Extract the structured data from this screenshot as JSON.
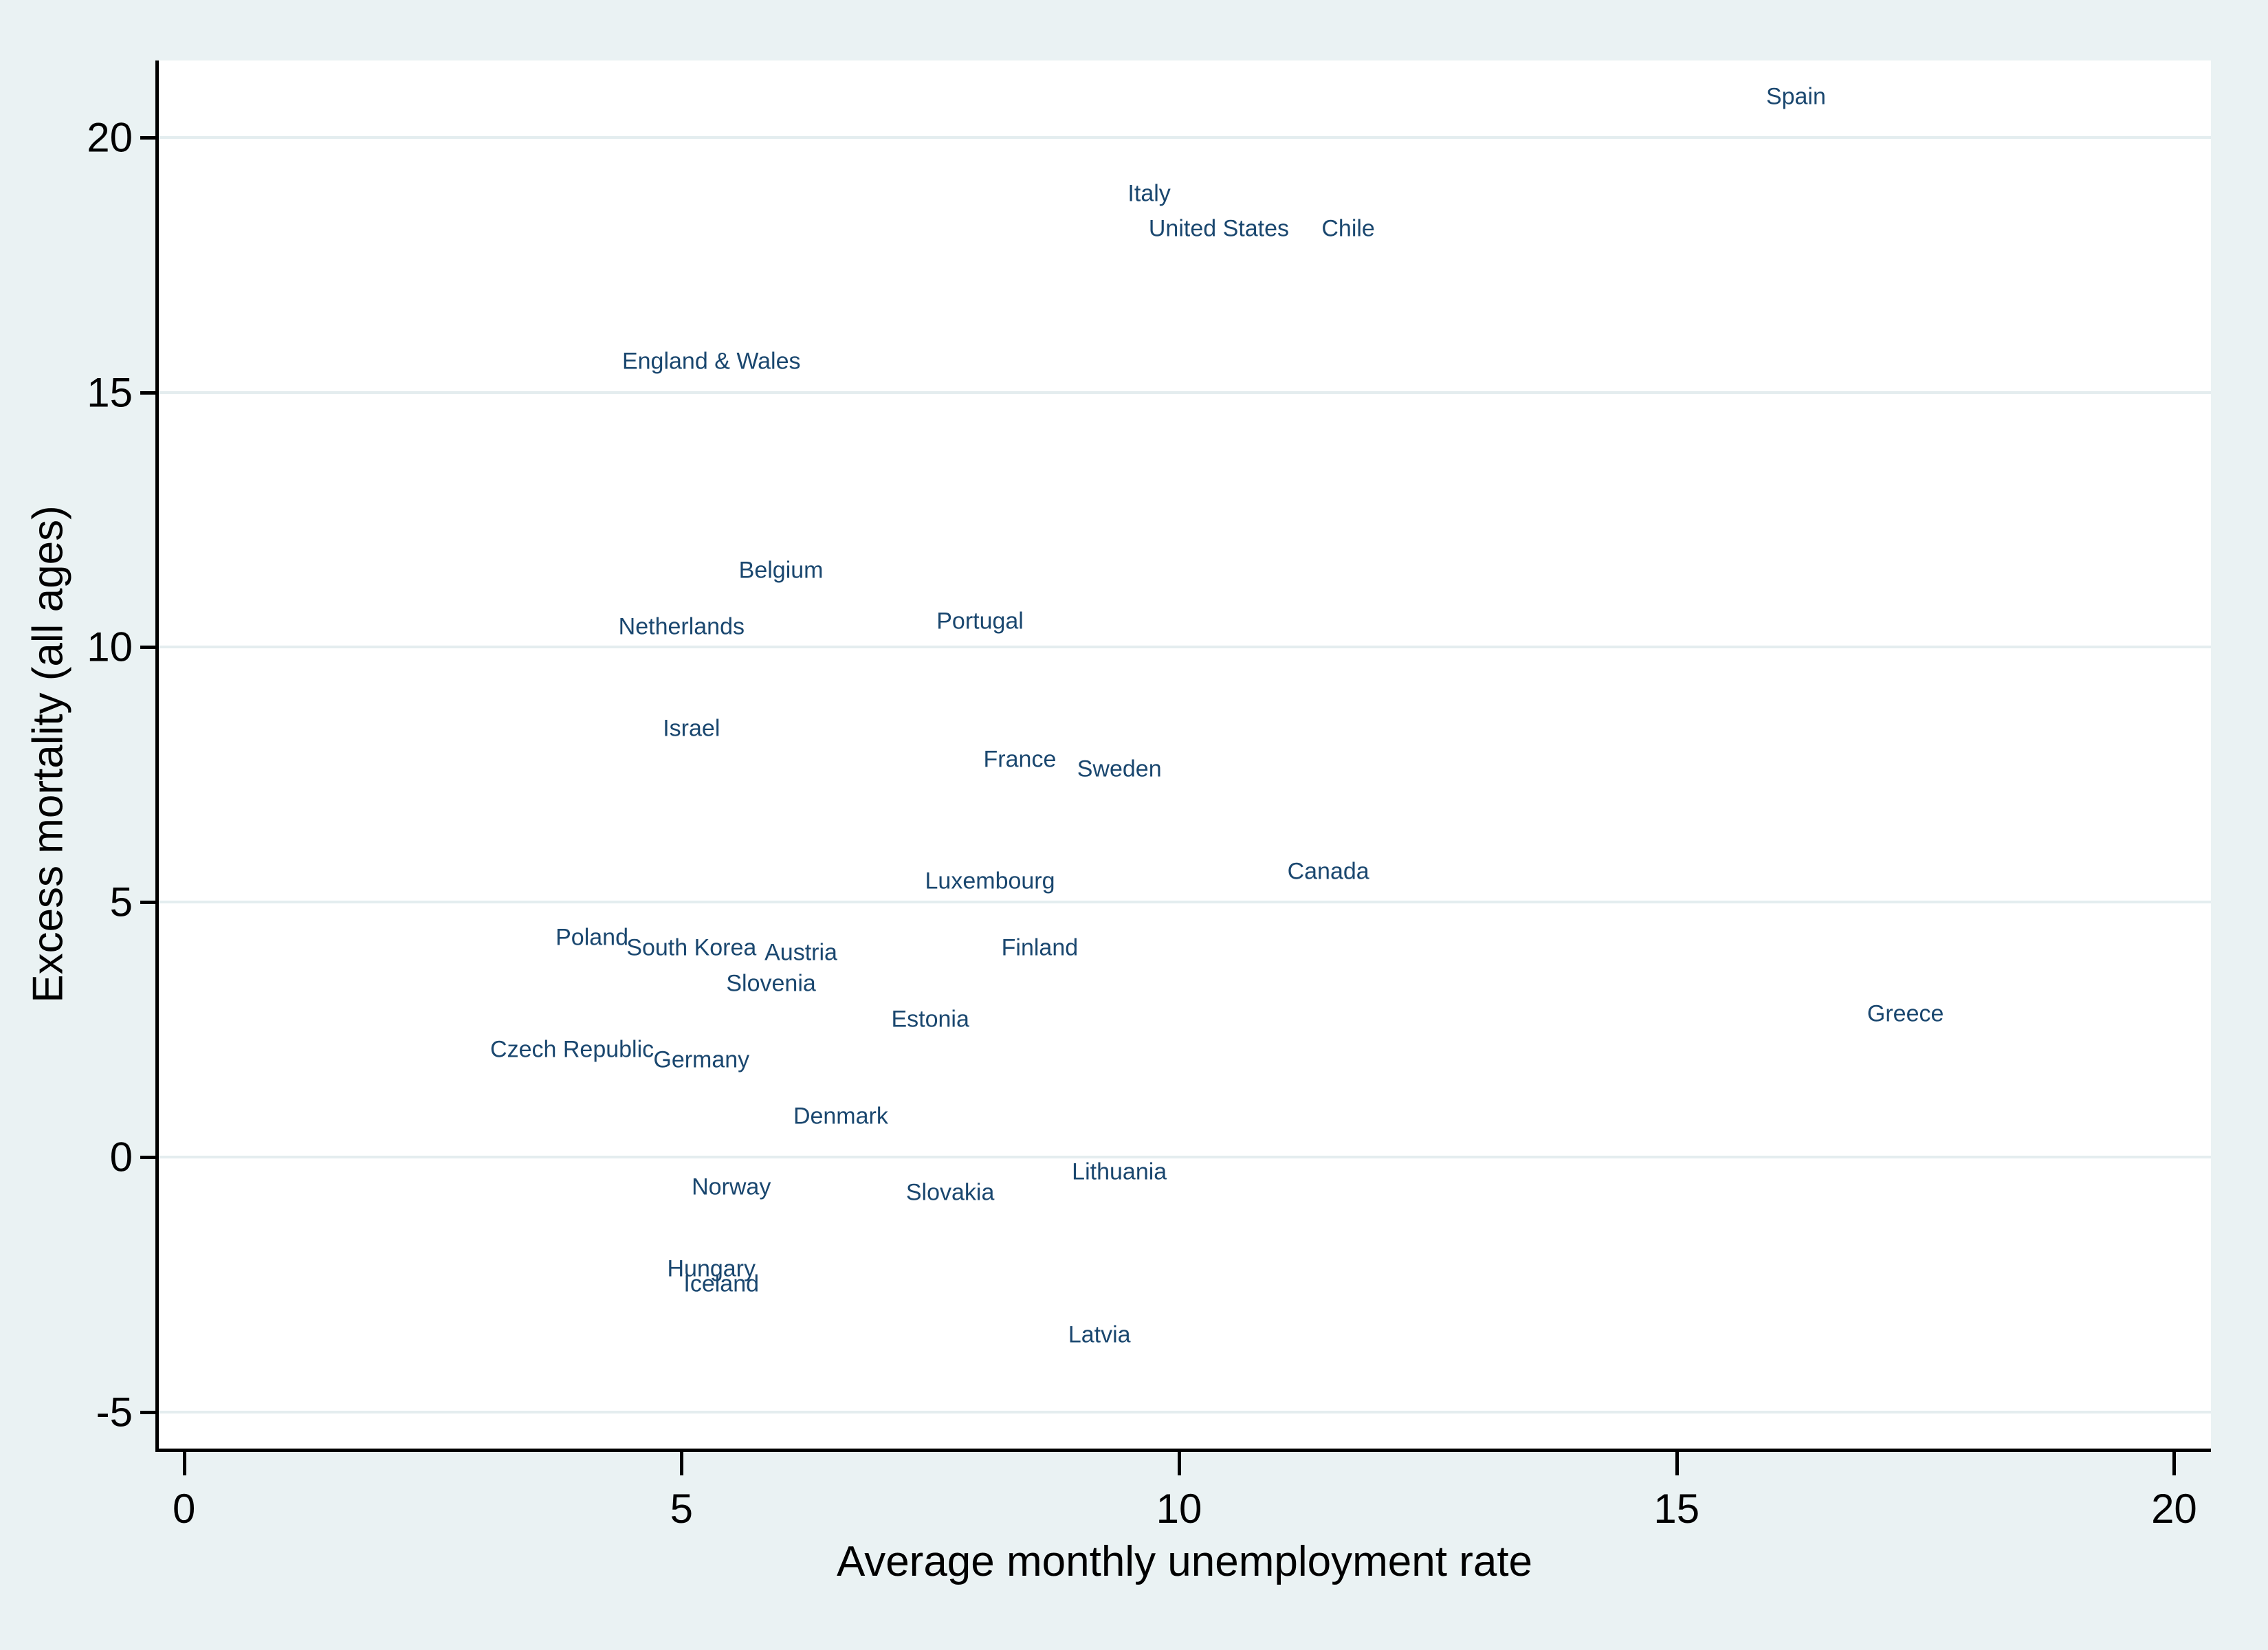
{
  "colors": {
    "page_background": "#eaf2f3",
    "plot_background": "#ffffff",
    "gridline": "#e4edef",
    "axis": "#000000",
    "point_label": "#1a476f"
  },
  "chart_data": {
    "type": "scatter",
    "title": "",
    "xlabel": "Average monthly unemployment rate",
    "ylabel": "Excess mortality (all ages)",
    "x_ticks": [
      0,
      5,
      10,
      15,
      20
    ],
    "y_ticks": [
      -5,
      0,
      5,
      10,
      15,
      20
    ],
    "x_domain": [
      -0.26,
      20.37
    ],
    "y_domain": [
      -5.72,
      21.51
    ],
    "grid": "horizontal-only",
    "legend": "none",
    "marker": "text-label-only",
    "points": [
      {
        "label": "Spain",
        "x": 16.2,
        "y": 20.8
      },
      {
        "label": "Italy",
        "x": 9.7,
        "y": 18.9
      },
      {
        "label": "United States",
        "x": 10.4,
        "y": 18.2
      },
      {
        "label": "Chile",
        "x": 11.7,
        "y": 18.2
      },
      {
        "label": "England & Wales",
        "x": 5.3,
        "y": 15.6
      },
      {
        "label": "Belgium",
        "x": 6.0,
        "y": 11.5
      },
      {
        "label": "Netherlands",
        "x": 5.0,
        "y": 10.4
      },
      {
        "label": "Portugal",
        "x": 8.0,
        "y": 10.5
      },
      {
        "label": "Israel",
        "x": 5.1,
        "y": 8.4
      },
      {
        "label": "France",
        "x": 8.4,
        "y": 7.8
      },
      {
        "label": "Sweden",
        "x": 9.4,
        "y": 7.6
      },
      {
        "label": "Luxembourg",
        "x": 8.1,
        "y": 5.4
      },
      {
        "label": "Canada",
        "x": 11.5,
        "y": 5.6
      },
      {
        "label": "Poland",
        "x": 4.1,
        "y": 4.3
      },
      {
        "label": "South Korea",
        "x": 5.1,
        "y": 4.1
      },
      {
        "label": "Austria",
        "x": 6.2,
        "y": 4.0
      },
      {
        "label": "Slovenia",
        "x": 5.9,
        "y": 3.4
      },
      {
        "label": "Finland",
        "x": 8.6,
        "y": 4.1
      },
      {
        "label": "Estonia",
        "x": 7.5,
        "y": 2.7
      },
      {
        "label": "Czech Republic",
        "x": 3.9,
        "y": 2.1
      },
      {
        "label": "Germany",
        "x": 5.2,
        "y": 1.9
      },
      {
        "label": "Greece",
        "x": 17.3,
        "y": 2.8
      },
      {
        "label": "Denmark",
        "x": 6.6,
        "y": 0.8
      },
      {
        "label": "Norway",
        "x": 5.5,
        "y": -0.6
      },
      {
        "label": "Slovakia",
        "x": 7.7,
        "y": -0.7
      },
      {
        "label": "Lithuania",
        "x": 9.4,
        "y": -0.3
      },
      {
        "label": "Hungary",
        "x": 5.3,
        "y": -2.2
      },
      {
        "label": "Iceland",
        "x": 5.4,
        "y": -2.5
      },
      {
        "label": "Latvia",
        "x": 9.2,
        "y": -3.5
      }
    ]
  }
}
